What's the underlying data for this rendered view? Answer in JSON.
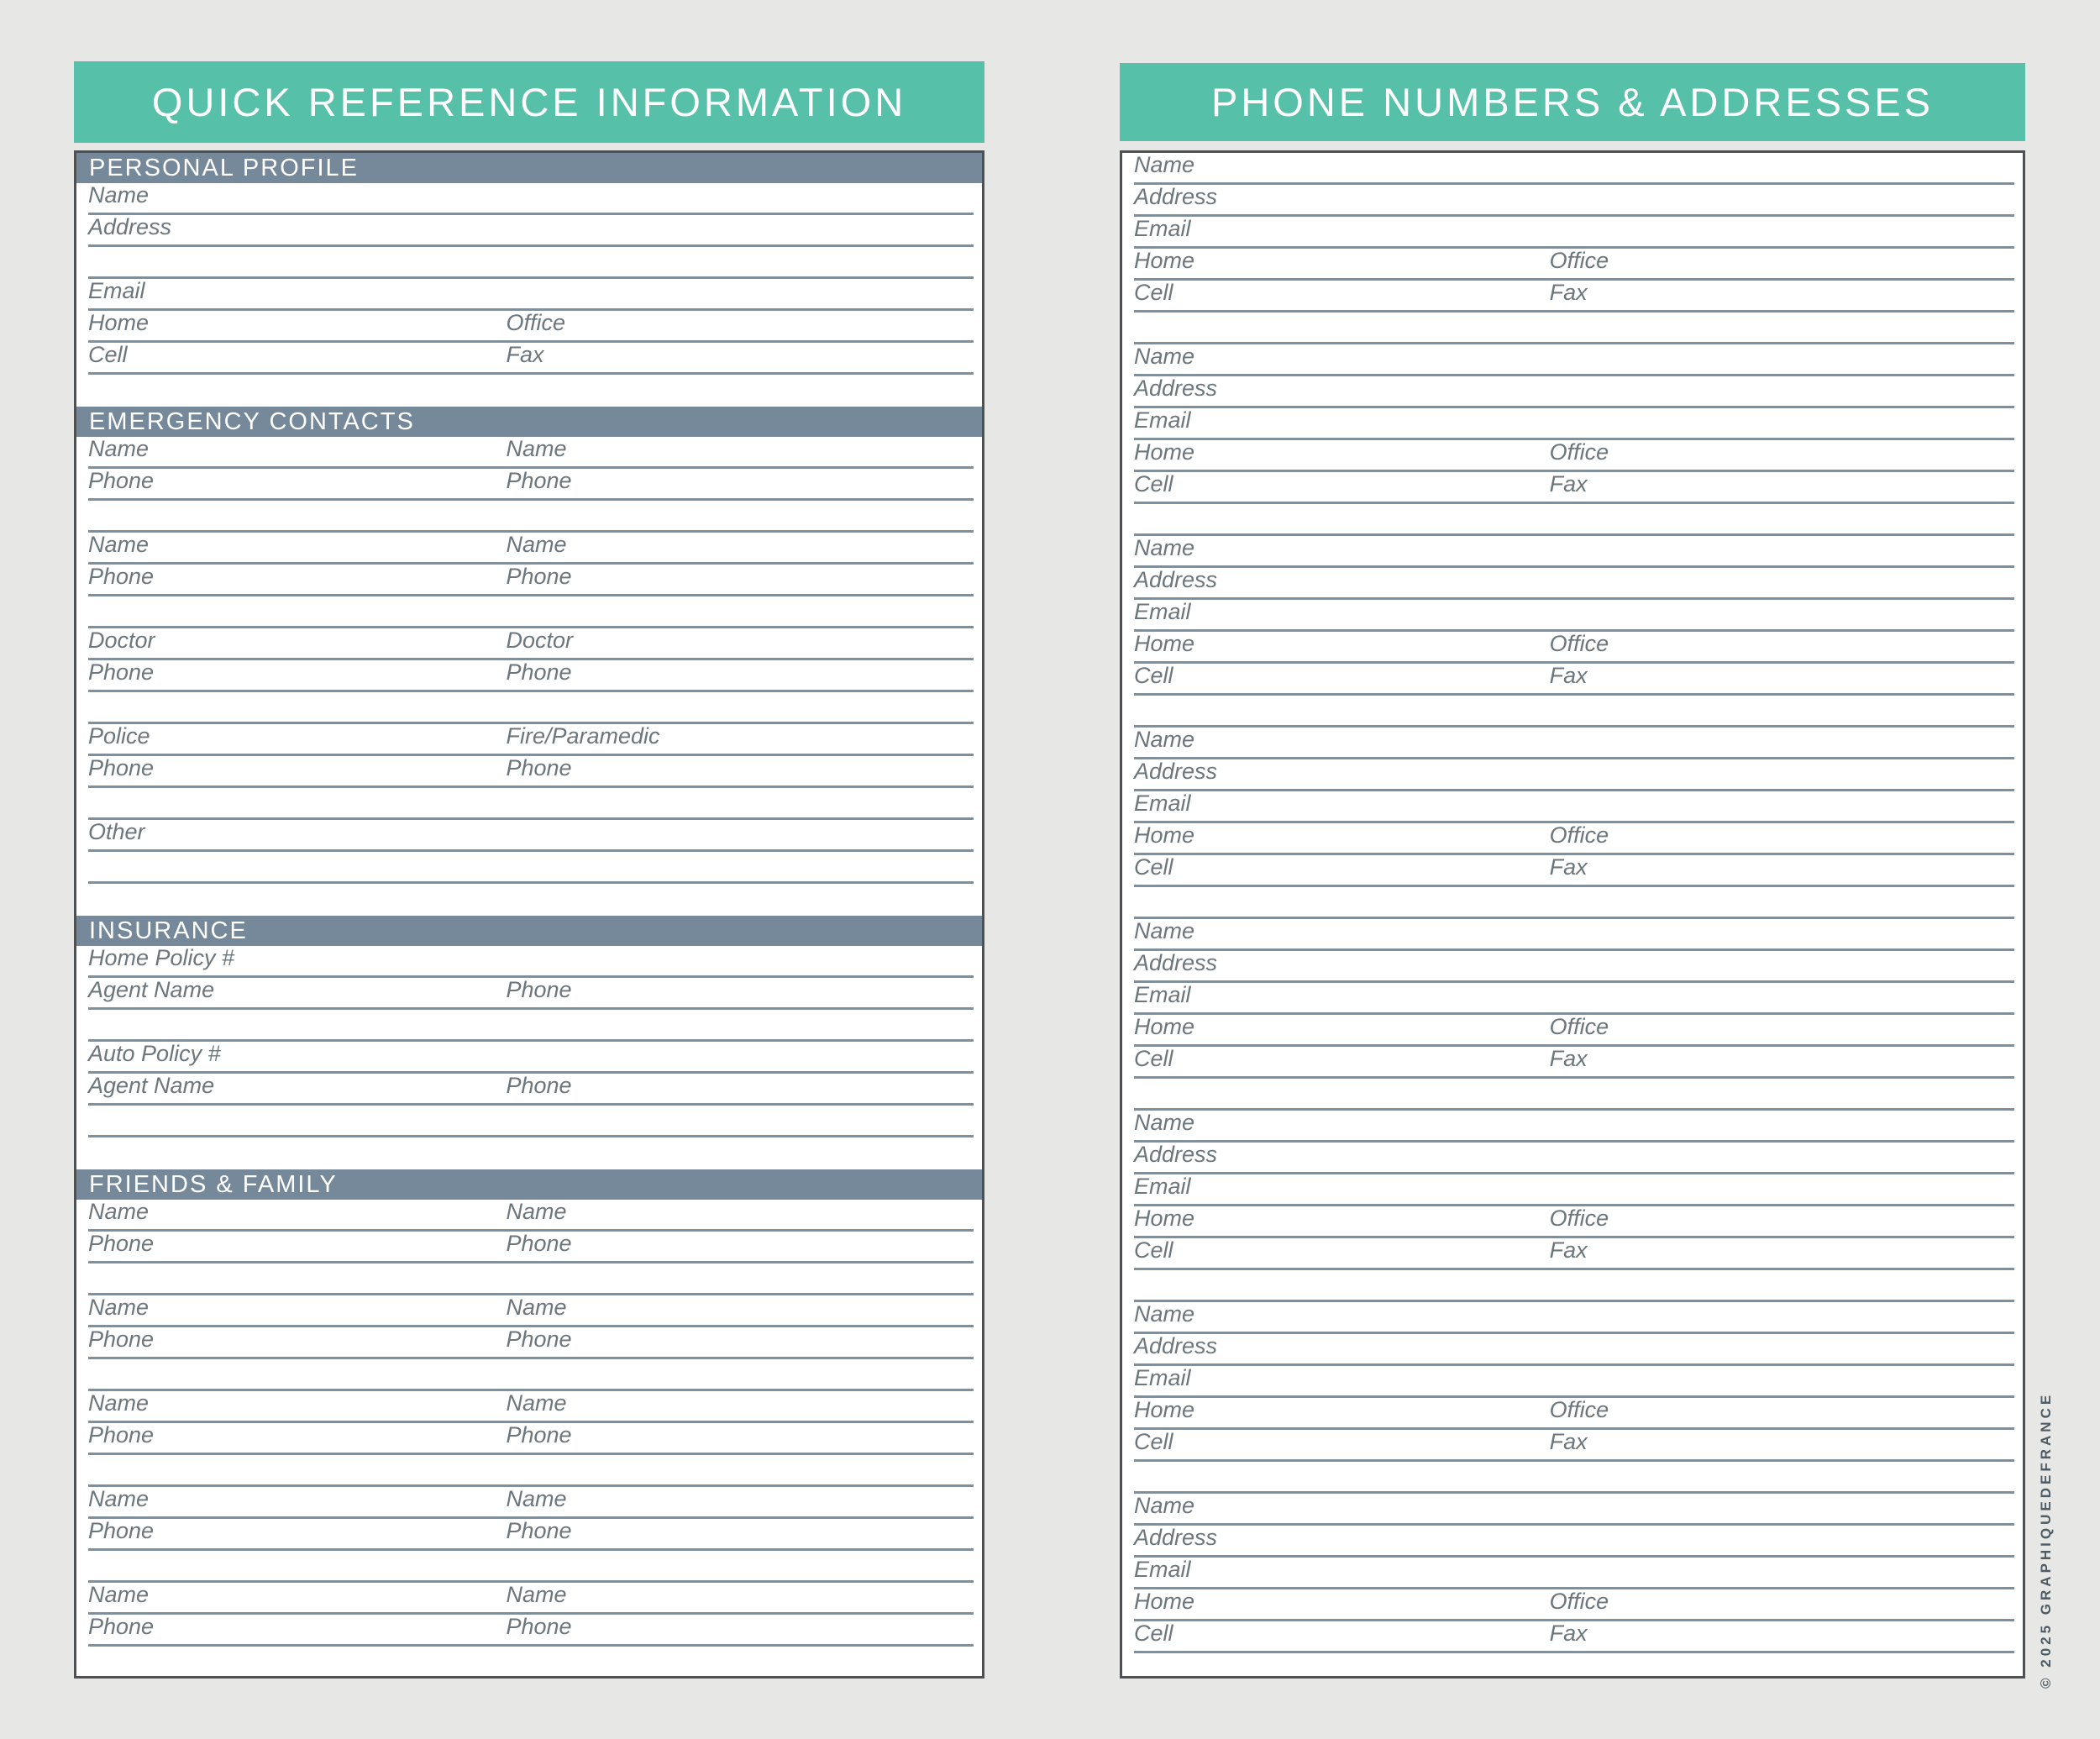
{
  "left_page": {
    "title": "QUICK REFERENCE INFORMATION",
    "sections": [
      {
        "title": "PERSONAL PROFILE",
        "rows": [
          [
            "Name"
          ],
          [
            "Address"
          ],
          [],
          [
            "Email"
          ],
          [
            "Home",
            "Office"
          ],
          [
            "Cell",
            "Fax"
          ]
        ]
      },
      {
        "title": "EMERGENCY CONTACTS",
        "rows": [
          [
            "Name",
            "Name"
          ],
          [
            "Phone",
            "Phone"
          ],
          [],
          [
            "Name",
            "Name"
          ],
          [
            "Phone",
            "Phone"
          ],
          [],
          [
            "Doctor",
            "Doctor"
          ],
          [
            "Phone",
            "Phone"
          ],
          [],
          [
            "Police",
            "Fire/Paramedic"
          ],
          [
            "Phone",
            "Phone"
          ],
          [],
          [
            "Other"
          ],
          []
        ]
      },
      {
        "title": "INSURANCE",
        "rows": [
          [
            "Home Policy #"
          ],
          [
            "Agent Name",
            "Phone"
          ],
          [],
          [
            "Auto Policy #"
          ],
          [
            "Agent Name",
            "Phone"
          ],
          []
        ]
      },
      {
        "title": "FRIENDS & FAMILY",
        "rows": [
          [
            "Name",
            "Name"
          ],
          [
            "Phone",
            "Phone"
          ],
          [],
          [
            "Name",
            "Name"
          ],
          [
            "Phone",
            "Phone"
          ],
          [],
          [
            "Name",
            "Name"
          ],
          [
            "Phone",
            "Phone"
          ],
          [],
          [
            "Name",
            "Name"
          ],
          [
            "Phone",
            "Phone"
          ],
          [],
          [
            "Name",
            "Name"
          ],
          [
            "Phone",
            "Phone"
          ]
        ]
      }
    ]
  },
  "right_page": {
    "title": "PHONE NUMBERS & ADDRESSES",
    "blocks": [
      [
        [
          "Name"
        ],
        [
          "Address"
        ],
        [
          "Email"
        ],
        [
          "Home",
          "Office"
        ],
        [
          "Cell",
          "Fax"
        ]
      ],
      [
        [
          "Name"
        ],
        [
          "Address"
        ],
        [
          "Email"
        ],
        [
          "Home",
          "Office"
        ],
        [
          "Cell",
          "Fax"
        ]
      ],
      [
        [
          "Name"
        ],
        [
          "Address"
        ],
        [
          "Email"
        ],
        [
          "Home",
          "Office"
        ],
        [
          "Cell",
          "Fax"
        ]
      ],
      [
        [
          "Name"
        ],
        [
          "Address"
        ],
        [
          "Email"
        ],
        [
          "Home",
          "Office"
        ],
        [
          "Cell",
          "Fax"
        ]
      ],
      [
        [
          "Name"
        ],
        [
          "Address"
        ],
        [
          "Email"
        ],
        [
          "Home",
          "Office"
        ],
        [
          "Cell",
          "Fax"
        ]
      ],
      [
        [
          "Name"
        ],
        [
          "Address"
        ],
        [
          "Email"
        ],
        [
          "Home",
          "Office"
        ],
        [
          "Cell",
          "Fax"
        ]
      ],
      [
        [
          "Name"
        ],
        [
          "Address"
        ],
        [
          "Email"
        ],
        [
          "Home",
          "Office"
        ],
        [
          "Cell",
          "Fax"
        ]
      ],
      [
        [
          "Name"
        ],
        [
          "Address"
        ],
        [
          "Email"
        ],
        [
          "Home",
          "Office"
        ],
        [
          "Cell",
          "Fax"
        ]
      ]
    ]
  },
  "copyright": "© 2025 GRAPHIQUEDEFRANCE",
  "colors": {
    "teal": "#57c0a8",
    "bar": "#76899a",
    "line": "#7b91a1",
    "label": "#6c767d",
    "background": "#e7e8e6",
    "border": "#4e5154",
    "page": "#ffffff"
  }
}
